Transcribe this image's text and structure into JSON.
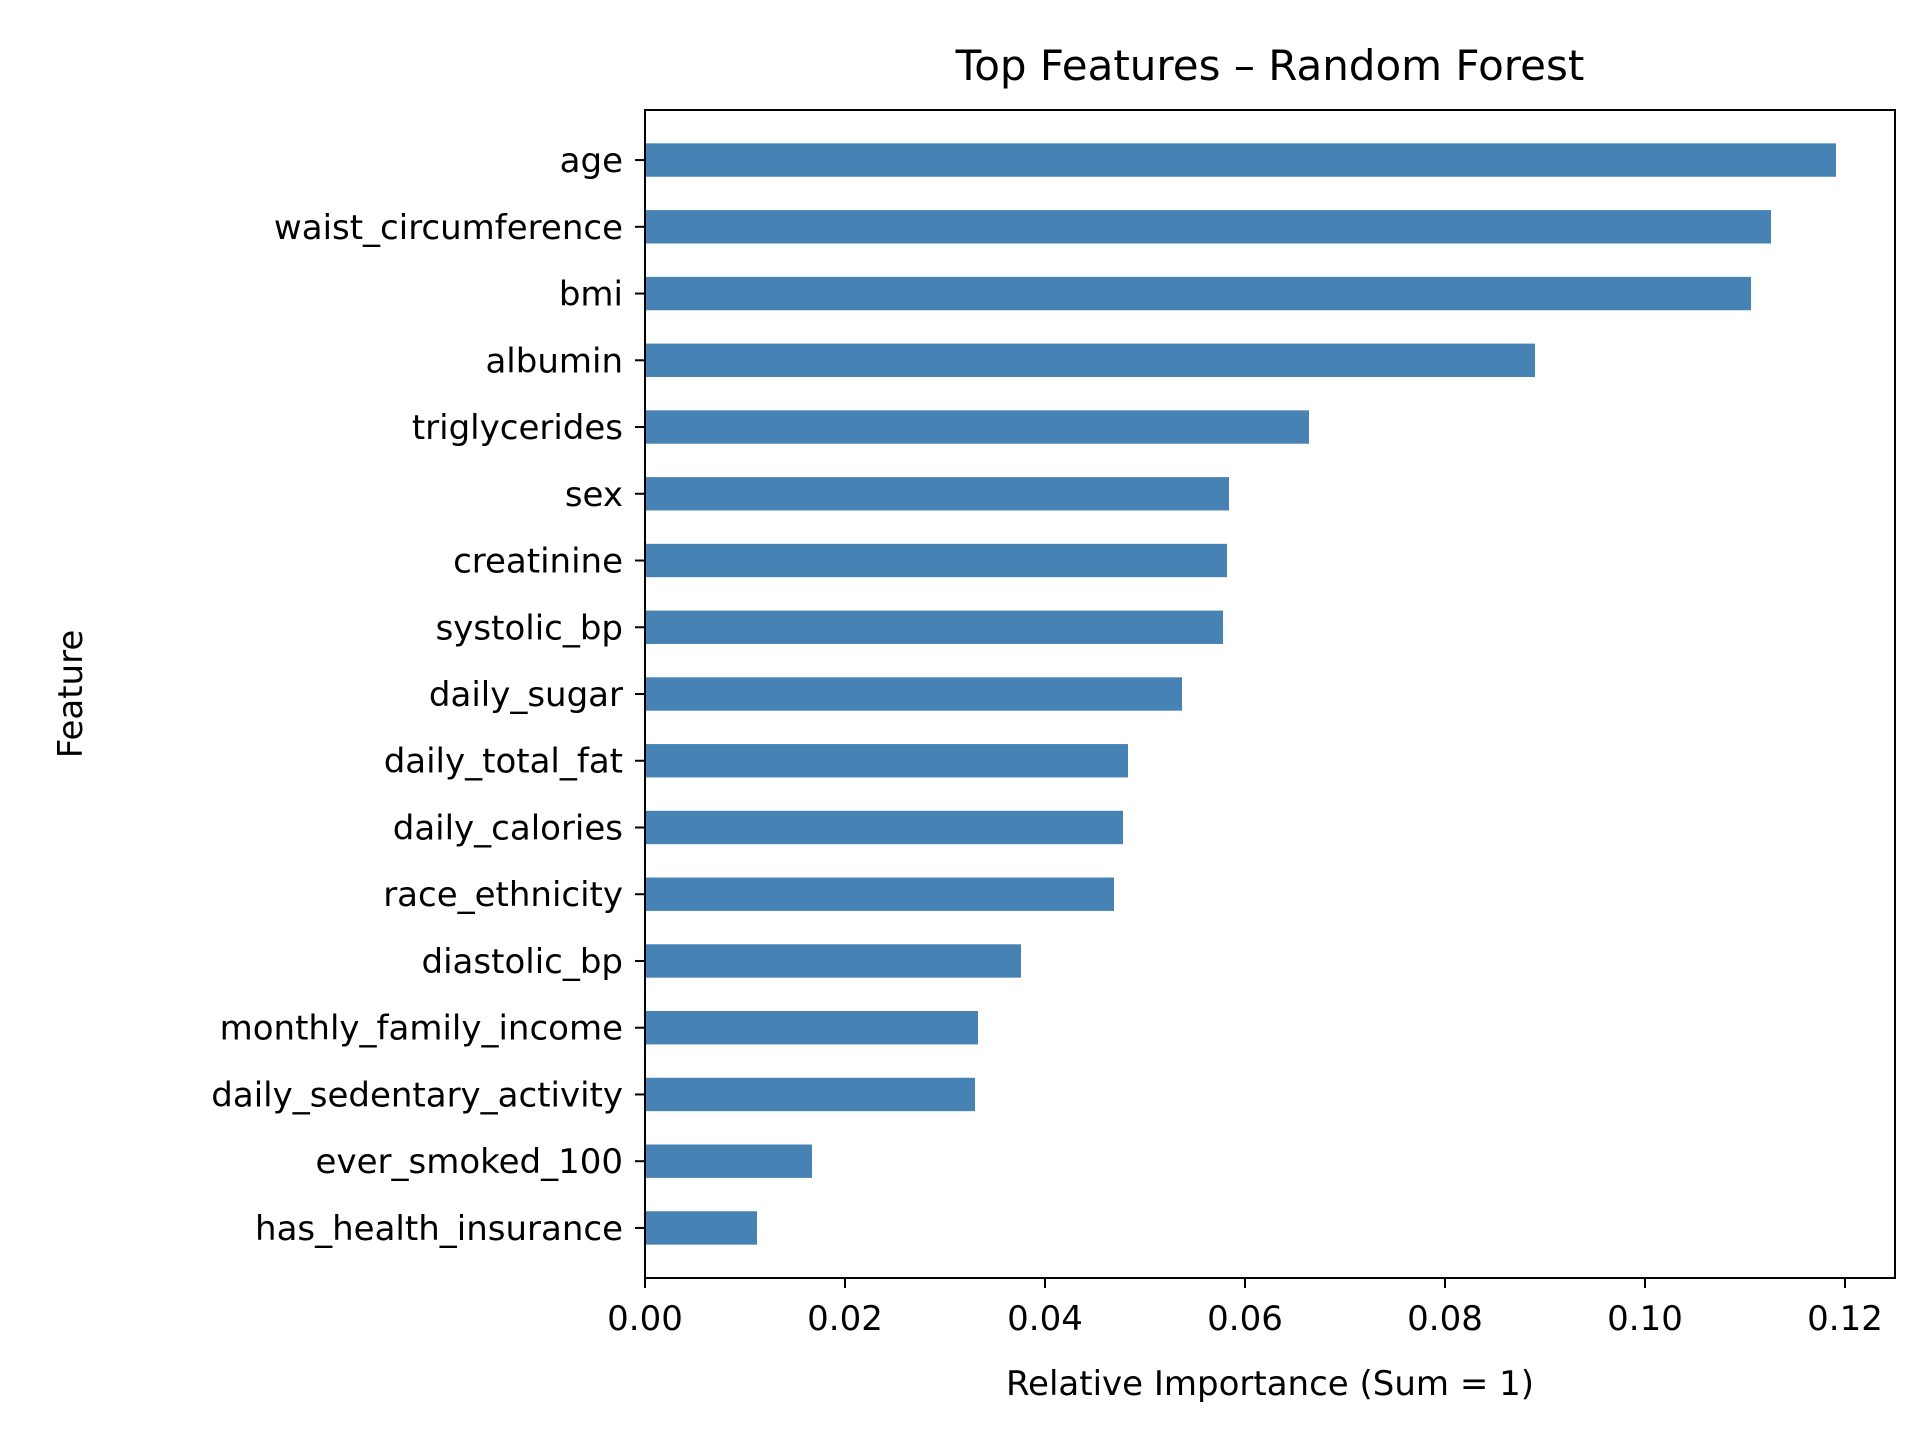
{
  "chart_data": {
    "type": "bar",
    "orientation": "horizontal",
    "title": "Top Features – Random Forest",
    "xlabel": "Relative Importance (Sum = 1)",
    "ylabel": "Feature",
    "xlim": [
      0,
      0.125
    ],
    "x_ticks": [
      "0.00",
      "0.02",
      "0.04",
      "0.06",
      "0.08",
      "0.10",
      "0.12"
    ],
    "bar_color": "#4682b4",
    "grid": false,
    "categories": [
      "age",
      "waist_circumference",
      "bmi",
      "albumin",
      "triglycerides",
      "sex",
      "creatinine",
      "systolic_bp",
      "daily_sugar",
      "daily_total_fat",
      "daily_calories",
      "race_ethnicity",
      "diastolic_bp",
      "monthly_family_income",
      "daily_sedentary_activity",
      "ever_smoked_100",
      "has_health_insurance"
    ],
    "values": [
      0.1191,
      0.1126,
      0.1106,
      0.089,
      0.0664,
      0.0584,
      0.0582,
      0.0578,
      0.0537,
      0.0483,
      0.0478,
      0.0469,
      0.0376,
      0.0333,
      0.033,
      0.0167,
      0.0112
    ]
  }
}
